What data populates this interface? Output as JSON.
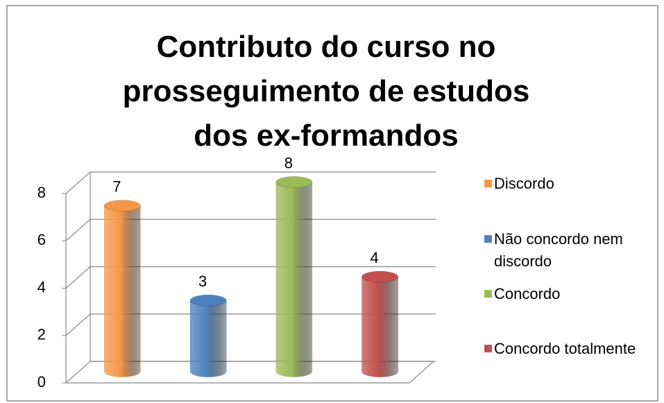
{
  "chart_data": {
    "type": "bar3d",
    "title": "Contributo do curso no prosseguimento de estudos dos ex-formandos",
    "categories": [
      "Discordo",
      "Não concordo nem discordo",
      "Concordo",
      "Concordo totalmente"
    ],
    "values": [
      7,
      3,
      8,
      4
    ],
    "colors": [
      "#f79646",
      "#4f81bd",
      "#9bbb59",
      "#c0504d"
    ],
    "ylim": [
      0,
      8
    ],
    "yticks": [
      0,
      2,
      4,
      6,
      8
    ],
    "grid": true,
    "legend": "right"
  }
}
